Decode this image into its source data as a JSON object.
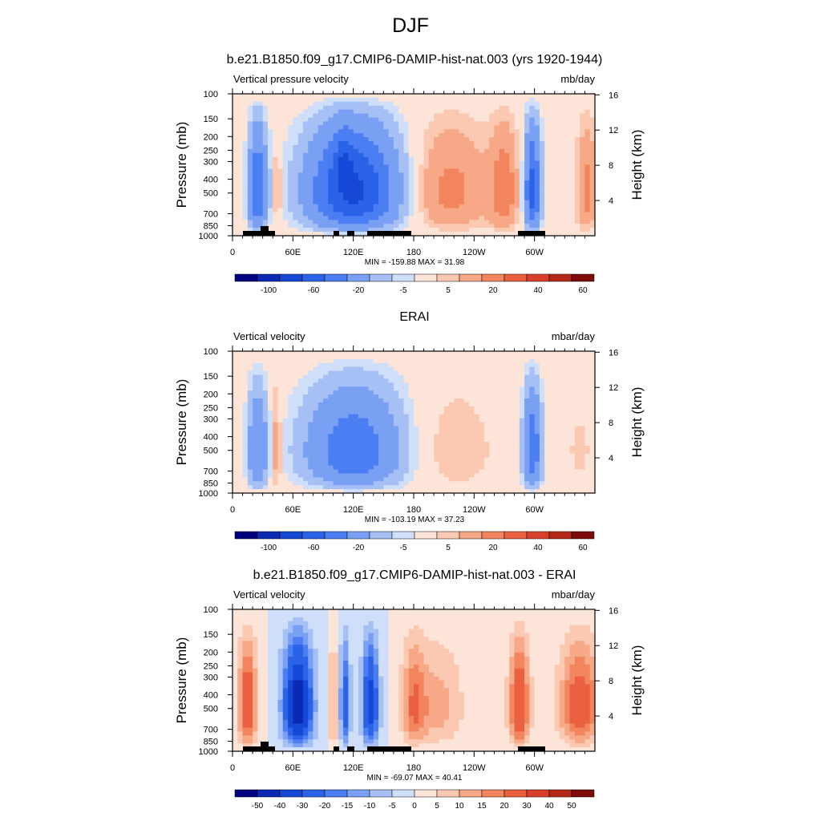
{
  "figure": {
    "title": "DJF"
  },
  "chart_data": [
    {
      "type": "heatmap",
      "title": "b.e21.B1850.f09_g17.CMIP6-DAMIP-hist-nat.003 (yrs 1920-1944)",
      "left_string": "Vertical pressure velocity",
      "units": "mb/day",
      "ylabel": "Pressure (mb)",
      "ylabel_right": "Height (km)",
      "x_ticks": [
        "0",
        "60E",
        "120E",
        "180",
        "120W",
        "60W"
      ],
      "y_ticks": [
        "100",
        "150",
        "200",
        "250",
        "300",
        "400",
        "500",
        "700",
        "850",
        "1000"
      ],
      "y2_ticks": [
        "16",
        "12",
        "8",
        "4"
      ],
      "stats": "MIN = -159.88  MAX =  31.98",
      "colorbar_ticks": [
        "-100",
        "-60",
        "-20",
        "-5",
        "5",
        "20",
        "40",
        "60"
      ],
      "min": -159.88,
      "max": 31.98,
      "colors": [
        "#00007f",
        "#0a2ab4",
        "#1648d6",
        "#2a62e8",
        "#4a7ef2",
        "#7aa0f4",
        "#a6c0f6",
        "#cfdffa",
        "#fde4d8",
        "#fbc9b2",
        "#f7a886",
        "#f2855e",
        "#eb6140",
        "#d8402a",
        "#b42818",
        "#7f0a0a"
      ]
    },
    {
      "type": "heatmap",
      "title": "ERAI",
      "left_string": "Vertical velocity",
      "units": "mbar/day",
      "ylabel": "Pressure (mb)",
      "ylabel_right": "Height (km)",
      "x_ticks": [
        "0",
        "60E",
        "120E",
        "180",
        "120W",
        "60W"
      ],
      "y_ticks": [
        "100",
        "150",
        "200",
        "250",
        "300",
        "400",
        "500",
        "700",
        "850",
        "1000"
      ],
      "y2_ticks": [
        "16",
        "12",
        "8",
        "4"
      ],
      "stats": "MIN = -103.19  MAX =  37.23",
      "colorbar_ticks": [
        "-100",
        "-60",
        "-20",
        "-5",
        "5",
        "20",
        "40",
        "60"
      ],
      "min": -103.19,
      "max": 37.23
    },
    {
      "type": "heatmap",
      "title": "b.e21.B1850.f09_g17.CMIP6-DAMIP-hist-nat.003 - ERAI",
      "left_string": "Vertical velocity",
      "units": "mbar/day",
      "ylabel": "Pressure (mb)",
      "ylabel_right": "Height (km)",
      "x_ticks": [
        "0",
        "60E",
        "120E",
        "180",
        "120W",
        "60W"
      ],
      "y_ticks": [
        "100",
        "150",
        "200",
        "250",
        "300",
        "400",
        "500",
        "700",
        "850",
        "1000"
      ],
      "y2_ticks": [
        "16",
        "12",
        "8",
        "4"
      ],
      "stats": "MIN = -69.07  MAX =  40.41",
      "colorbar_ticks": [
        "-50",
        "-40",
        "-30",
        "-20",
        "-15",
        "-10",
        "-5",
        "0",
        "5",
        "10",
        "15",
        "20",
        "30",
        "40",
        "50"
      ],
      "min": -69.07,
      "max": 40.41
    }
  ]
}
